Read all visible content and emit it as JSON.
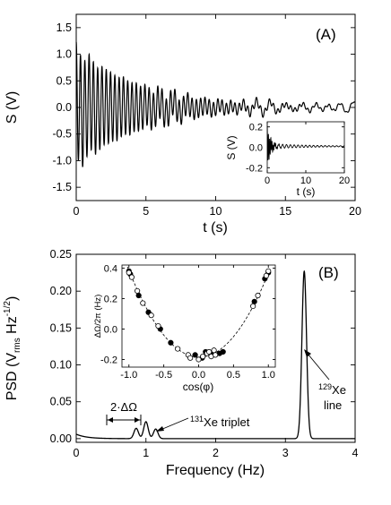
{
  "chart_data": [
    {
      "type": "line",
      "panel_label": "(A)",
      "xlabel": "t (s)",
      "ylabel": "S (V)",
      "xlim": [
        0,
        20
      ],
      "ylim": [
        -1.75,
        1.75
      ],
      "xticks": [
        0,
        5,
        10,
        15,
        20
      ],
      "yticks": [
        -1.5,
        -1.0,
        -0.5,
        0.0,
        0.5,
        1.0,
        1.5
      ],
      "xtick_labels": [
        "0",
        "5",
        "10",
        "15",
        "20"
      ],
      "ytick_labels": [
        "-1.5",
        "-1.0",
        "-0.5",
        "0.0",
        "0.5",
        "1.0",
        "1.5"
      ],
      "grid": false,
      "signal": {
        "description_free": true,
        "amplitude_V": 1.1,
        "frequency_Hz": 3.25,
        "decay_time_s": 4.8,
        "beat_components": [
          {
            "frequency_Hz": 0.86,
            "amplitude_V": 0.04
          },
          {
            "frequency_Hz": 1.0,
            "amplitude_V": 0.05
          },
          {
            "frequency_Hz": 1.16,
            "amplitude_V": 0.04
          }
        ]
      },
      "inset": {
        "type": "line",
        "xlabel": "t (s)",
        "ylabel": "S (V)",
        "xlim": [
          0,
          20
        ],
        "ylim": [
          -0.25,
          0.25
        ],
        "xticks": [
          0,
          10,
          20
        ],
        "yticks": [
          -0.2,
          0.0,
          0.2
        ],
        "xtick_labels": [
          "0",
          "10",
          "20"
        ],
        "ytick_labels": [
          "-0.2",
          "0.0",
          "0.2"
        ],
        "signal": {
          "amplitude_V": 0.18,
          "frequency_Hz": 3.25,
          "decay_time_s": 0.9,
          "offset_V": 0.01,
          "slow_component": {
            "frequency_Hz": 1.0,
            "amplitude_V": 0.025,
            "decay_time_s": 12
          }
        }
      }
    },
    {
      "type": "line",
      "panel_label": "(B)",
      "xlabel": "Frequency (Hz)",
      "ylabel_main": "PSD (V",
      "ylabel_sub": "rms",
      "ylabel_mid": " Hz",
      "ylabel_sup": "-1/2",
      "ylabel_end": ")",
      "xlim": [
        0,
        4
      ],
      "ylim": [
        -0.005,
        0.25
      ],
      "xticks": [
        0,
        1,
        2,
        3,
        4
      ],
      "yticks": [
        0.0,
        0.05,
        0.1,
        0.15,
        0.2,
        0.25
      ],
      "xtick_labels": [
        "0",
        "1",
        "2",
        "3",
        "4"
      ],
      "ytick_labels": [
        "0.00",
        "0.05",
        "0.10",
        "0.15",
        "0.20",
        "0.25"
      ],
      "grid": false,
      "baseline_V": 0.0,
      "low_freq_rise": {
        "amplitude": 0.006,
        "width_Hz": 0.15
      },
      "peaks": [
        {
          "center_Hz": 0.86,
          "height": 0.014,
          "width_Hz": 0.032
        },
        {
          "center_Hz": 1.0,
          "height": 0.023,
          "width_Hz": 0.032
        },
        {
          "center_Hz": 1.14,
          "height": 0.013,
          "width_Hz": 0.032
        },
        {
          "center_Hz": 3.27,
          "height": 0.227,
          "width_Hz": 0.033
        }
      ],
      "annotations": {
        "delta": "2·ΔΩ",
        "xe131_sup": "131",
        "xe131_text": "Xe triplet",
        "xe129_sup": "129",
        "xe129_text": "Xe",
        "xe129_line2": "line"
      },
      "inset": {
        "type": "scatter",
        "xlabel": "cos(φ)",
        "ylabel": "ΔΩ/2π (Hz)",
        "xlim": [
          -1.1,
          1.1
        ],
        "ylim": [
          -0.25,
          0.42
        ],
        "xticks": [
          -1.0,
          -0.5,
          0.0,
          0.5,
          1.0
        ],
        "yticks": [
          -0.2,
          0.0,
          0.2,
          0.4
        ],
        "xtick_labels": [
          "-1.0",
          "-0.5",
          "0.0",
          "0.5",
          "1.0"
        ],
        "ytick_labels": [
          "-0.2",
          "0.0",
          "0.2",
          "0.4"
        ],
        "fit": {
          "type": "parabola",
          "a": 0.56,
          "b": -0.01,
          "c": -0.185
        },
        "series": [
          {
            "marker": "filled",
            "x": [
              -1.0,
              -0.98,
              -0.86,
              -0.72,
              -0.55,
              -0.4,
              -0.05,
              0.05,
              0.1,
              0.2,
              0.3,
              0.35,
              0.8,
              0.95,
              1.0
            ],
            "y": [
              0.38,
              0.36,
              0.22,
              0.11,
              0.0,
              -0.09,
              -0.17,
              -0.19,
              -0.15,
              -0.16,
              -0.16,
              -0.15,
              0.18,
              0.33,
              0.37
            ]
          },
          {
            "marker": "open",
            "x": [
              -1.0,
              -0.96,
              -0.88,
              -0.8,
              -0.68,
              -0.58,
              -0.3,
              -0.15,
              -0.12,
              0.0,
              0.06,
              0.12,
              0.15,
              0.18,
              0.22,
              0.24,
              0.78,
              0.85,
              0.97,
              1.0
            ],
            "y": [
              0.37,
              0.34,
              0.25,
              0.17,
              0.09,
              0.02,
              -0.13,
              -0.17,
              -0.19,
              -0.2,
              -0.18,
              -0.16,
              -0.15,
              -0.18,
              -0.14,
              -0.17,
              0.15,
              0.22,
              0.35,
              0.38
            ]
          }
        ]
      }
    }
  ]
}
